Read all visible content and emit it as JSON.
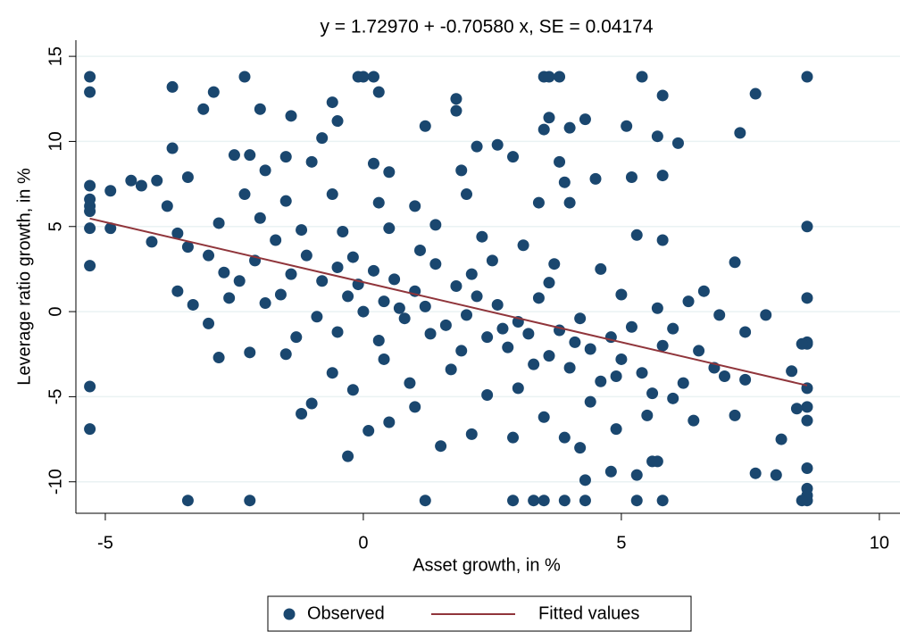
{
  "chart_data": {
    "type": "scatter",
    "title": "y =   1.72970 +  -0.70580 x, SE =   0.04174",
    "x_label": "Asset growth, in %",
    "y_label": "Leverage ratio growth, in %",
    "xlim": [
      -5.57,
      10.4
    ],
    "ylim": [
      -11.85,
      15.95
    ],
    "xticks": [
      -5,
      0,
      5,
      10
    ],
    "yticks": [
      -10,
      -5,
      0,
      5,
      10,
      15
    ],
    "grid": true,
    "legend": "bottom",
    "series": [
      {
        "name": "Observed",
        "mode": "markers",
        "color": "#1a476f",
        "x": [
          -5.3,
          -5.3,
          -5.3,
          -5.3,
          -5.3,
          -5.3,
          -5.3,
          -5.3,
          -5.3,
          -5.3,
          8.6,
          8.6,
          8.6,
          8.6,
          8.6,
          8.6,
          8.6,
          8.6,
          8.6,
          8.6,
          8.6,
          8.6,
          -3.4,
          -2.2,
          1.2,
          2.9,
          3.3,
          3.5,
          3.9,
          4.3,
          5.3,
          5.8,
          8.5,
          -2.3,
          -0.1,
          0.0,
          0.2,
          3.5,
          3.6,
          3.8,
          5.4,
          -3.7,
          -2.9,
          -3.1,
          -2.0,
          -1.4,
          -0.6,
          0.3,
          -0.5,
          1.2,
          1.8,
          1.8,
          3.5,
          3.6,
          4.0,
          4.3,
          5.1,
          5.8,
          7.6,
          7.3,
          6.1,
          5.7,
          2.2,
          2.6,
          -0.8,
          -3.7,
          -2.5,
          -2.2,
          -1.5,
          -1.9,
          -1.0,
          0.2,
          0.5,
          1.9,
          2.9,
          3.8,
          5.8,
          5.2,
          -4.9,
          -4.5,
          -4.0,
          -3.4,
          -2.3,
          -1.5,
          -0.6,
          0.3,
          1.0,
          2.0,
          3.4,
          3.9,
          4.0,
          4.5,
          -4.9,
          -4.1,
          -3.6,
          -3.4,
          -3.0,
          -2.7,
          -2.1,
          -1.7,
          -1.4,
          -1.1,
          -0.8,
          -0.5,
          -0.3,
          -0.1,
          0.2,
          0.4,
          0.6,
          0.8,
          1.0,
          1.2,
          1.4,
          1.6,
          1.8,
          2.0,
          2.2,
          2.4,
          2.6,
          2.8,
          3.0,
          3.2,
          3.4,
          3.6,
          3.8,
          4.0,
          4.2,
          4.4,
          4.6,
          4.8,
          5.0,
          5.2,
          5.4,
          5.6,
          5.8,
          6.0,
          6.2,
          6.4,
          6.6,
          6.8,
          7.2,
          7.2,
          7.4,
          7.6,
          7.8,
          8.1,
          8.0,
          8.3,
          8.4,
          8.5,
          -0.6,
          -0.2,
          0.1,
          0.5,
          -1.2,
          -1.5,
          -2.2,
          -2.8,
          -3.0,
          -3.6,
          -3.3,
          -1.0,
          -0.3,
          1.0,
          1.5,
          2.1,
          2.9,
          3.5,
          3.9,
          4.2,
          4.3,
          4.8,
          5.3,
          5.6,
          5.7,
          4.9,
          5.5,
          2.4,
          1.7,
          0.9,
          0.4,
          -0.9,
          -1.9,
          -2.4,
          -4.3,
          -3.8,
          -2.8,
          -2.0,
          -1.2,
          -0.4,
          0.5,
          1.4,
          2.3,
          3.1,
          3.7,
          4.6,
          5.3,
          5.8,
          6.3,
          6.9,
          7.4,
          0.0,
          0.7,
          1.3,
          1.9,
          2.7,
          3.3,
          4.1,
          4.9,
          -0.5,
          -1.6,
          0.3,
          2.1,
          3.6,
          5.0,
          5.7,
          6.5,
          1.1,
          -0.2,
          2.5,
          4.4,
          3.0,
          6.0,
          7.0,
          -2.6,
          -1.3
        ],
        "values": [
          13.8,
          12.9,
          7.4,
          6.6,
          6.2,
          5.9,
          4.9,
          2.7,
          -4.4,
          -6.9,
          13.8,
          5.0,
          0.8,
          -1.8,
          -1.9,
          -4.5,
          -5.6,
          -6.4,
          -9.2,
          -10.4,
          -10.8,
          -11.1,
          -11.1,
          -11.1,
          -11.1,
          -11.1,
          -11.1,
          -11.1,
          -11.1,
          -11.1,
          -11.1,
          -11.1,
          -11.1,
          13.8,
          13.8,
          13.8,
          13.8,
          13.8,
          13.8,
          13.8,
          13.8,
          13.2,
          12.9,
          11.9,
          11.9,
          11.5,
          12.3,
          12.9,
          11.2,
          10.9,
          12.5,
          11.8,
          10.7,
          11.4,
          10.8,
          11.3,
          10.9,
          12.7,
          12.8,
          10.5,
          9.9,
          10.3,
          9.7,
          9.8,
          10.2,
          9.6,
          9.2,
          9.2,
          9.1,
          8.3,
          8.8,
          8.7,
          8.2,
          8.3,
          9.1,
          8.8,
          8.0,
          7.9,
          7.1,
          7.7,
          7.7,
          7.9,
          6.9,
          6.5,
          6.9,
          6.4,
          6.2,
          6.9,
          6.4,
          7.6,
          6.4,
          7.8,
          4.9,
          4.1,
          4.6,
          3.8,
          3.3,
          2.3,
          3.0,
          4.2,
          2.2,
          3.3,
          1.8,
          2.6,
          0.9,
          1.6,
          2.4,
          0.6,
          1.9,
          -0.4,
          1.2,
          0.3,
          2.8,
          -0.8,
          1.5,
          -0.2,
          0.9,
          -1.5,
          0.4,
          -2.1,
          -0.6,
          -1.3,
          0.8,
          -2.6,
          -1.1,
          -3.3,
          -0.4,
          -2.2,
          -4.1,
          -1.5,
          -2.8,
          -0.9,
          -3.6,
          -4.8,
          -2.0,
          -1.0,
          -4.2,
          -6.4,
          1.2,
          -3.3,
          2.9,
          -6.1,
          -4.0,
          -9.5,
          -0.2,
          -7.5,
          -9.6,
          -3.5,
          -5.7,
          -1.9,
          -3.6,
          -4.6,
          -7.0,
          -6.5,
          -6.0,
          -2.5,
          -2.4,
          -2.7,
          -0.7,
          1.2,
          0.4,
          -5.4,
          -8.5,
          -5.6,
          -7.9,
          -7.2,
          -7.4,
          -6.2,
          -7.4,
          -8.0,
          -9.9,
          -9.4,
          -9.6,
          -8.8,
          -8.8,
          -6.9,
          -6.1,
          -4.9,
          -3.4,
          -4.2,
          -2.8,
          -0.3,
          0.5,
          1.8,
          7.4,
          6.2,
          5.2,
          5.5,
          4.8,
          4.7,
          4.9,
          5.1,
          4.4,
          3.9,
          2.8,
          2.5,
          4.5,
          4.2,
          0.6,
          -0.2,
          -1.2,
          0.0,
          0.2,
          -1.3,
          -2.3,
          -1.0,
          -3.1,
          -1.8,
          -3.8,
          -1.2,
          1.0,
          -1.7,
          2.2,
          1.7,
          1.0,
          0.2,
          -2.3,
          3.6,
          3.2,
          3.0,
          -5.3,
          -4.5,
          -5.1,
          -3.8,
          0.8,
          -1.5
        ]
      },
      {
        "name": "Fitted values",
        "mode": "line",
        "color": "#90353b",
        "x": [
          -5.3,
          8.6
        ],
        "values": [
          5.4704,
          -4.3402
        ]
      }
    ]
  }
}
